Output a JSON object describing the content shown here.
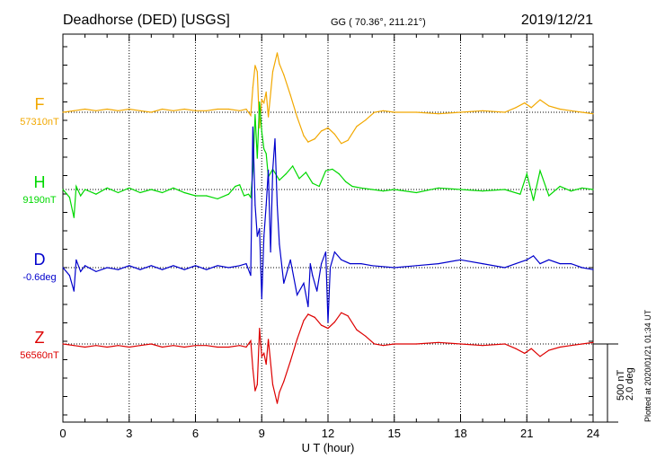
{
  "header": {
    "station": "Deadhorse (DED)  [USGS]",
    "coords": "GG ( 70.36°, 211.21°)",
    "date": "2019/12/21"
  },
  "footer_note": "Plotted at 2020/01/21 01:34 UT",
  "scale_bar": {
    "nT_label": "500 nT",
    "deg_label": "2.0 deg"
  },
  "colors": {
    "F": "#f2a800",
    "H": "#00d800",
    "D": "#0000cc",
    "Z": "#dd0000",
    "grid": "#000000"
  },
  "chart_data": {
    "type": "line",
    "xlabel": "U T (hour)",
    "xlim": [
      0,
      24
    ],
    "xticks": [
      0,
      3,
      6,
      9,
      12,
      15,
      18,
      21,
      24
    ],
    "xtick_labels": [
      "0",
      "3",
      "6",
      "9",
      "12",
      "15",
      "18",
      "21",
      "24"
    ],
    "grid": true,
    "series": [
      {
        "name": "F",
        "baseline_label": "57310nT",
        "color": "#f2a800",
        "x": [
          0,
          0.5,
          1,
          1.5,
          2,
          2.5,
          3,
          3.5,
          4,
          4.5,
          5,
          5.5,
          6,
          6.5,
          7,
          7.5,
          8,
          8.3,
          8.5,
          8.6,
          8.7,
          8.8,
          8.9,
          9.0,
          9.1,
          9.2,
          9.3,
          9.5,
          9.7,
          9.8,
          10,
          10.3,
          10.6,
          10.9,
          11.1,
          11.4,
          11.7,
          12.0,
          12.3,
          12.6,
          12.9,
          13.3,
          13.7,
          14.1,
          14.5,
          15,
          16,
          17,
          18,
          19,
          20,
          20.5,
          20.9,
          21.2,
          21.6,
          22,
          22.5,
          23,
          23.5,
          24
        ],
        "values": [
          0,
          10,
          20,
          10,
          20,
          10,
          20,
          10,
          0,
          20,
          10,
          20,
          10,
          10,
          20,
          20,
          10,
          20,
          -20,
          160,
          300,
          260,
          -100,
          80,
          60,
          130,
          -30,
          260,
          380,
          310,
          240,
          110,
          -30,
          -150,
          -190,
          -170,
          -120,
          -100,
          -140,
          -200,
          -180,
          -90,
          -50,
          0,
          10,
          0,
          0,
          -10,
          0,
          10,
          0,
          30,
          60,
          30,
          80,
          40,
          20,
          10,
          0,
          -10
        ]
      },
      {
        "name": "H",
        "baseline_label": "9190nT",
        "color": "#00d800",
        "x": [
          0,
          0.3,
          0.5,
          0.6,
          0.8,
          1,
          1.5,
          2,
          2.5,
          3,
          3.5,
          4,
          4.5,
          5,
          5.5,
          6,
          6.5,
          7,
          7.5,
          7.8,
          8.0,
          8.2,
          8.4,
          8.5,
          8.6,
          8.7,
          8.8,
          8.9,
          9.0,
          9.1,
          9.2,
          9.3,
          9.5,
          9.8,
          10.1,
          10.4,
          10.7,
          11.0,
          11.3,
          11.6,
          11.9,
          12.2,
          12.5,
          12.8,
          13.1,
          13.5,
          14,
          14.5,
          15,
          16,
          17,
          18,
          19,
          20,
          20.7,
          21,
          21.3,
          21.6,
          22,
          22.5,
          23,
          23.5,
          24
        ],
        "values": [
          0,
          -50,
          -180,
          20,
          -40,
          0,
          -30,
          10,
          -20,
          10,
          -20,
          0,
          -20,
          10,
          -20,
          -40,
          -40,
          -60,
          -30,
          20,
          30,
          -40,
          -30,
          -50,
          120,
          480,
          200,
          560,
          370,
          260,
          230,
          80,
          130,
          60,
          100,
          150,
          70,
          110,
          40,
          20,
          120,
          130,
          100,
          50,
          20,
          10,
          0,
          -10,
          0,
          -20,
          10,
          0,
          -10,
          0,
          -30,
          100,
          -70,
          120,
          -40,
          20,
          -10,
          10,
          0
        ]
      },
      {
        "name": "D",
        "baseline_label": "-0.6deg",
        "color": "#0000cc",
        "x": [
          0,
          0.3,
          0.5,
          0.6,
          0.8,
          1,
          1.5,
          2,
          2.5,
          3,
          3.5,
          4,
          4.5,
          5,
          5.5,
          6,
          6.5,
          7,
          7.5,
          8,
          8.3,
          8.5,
          8.6,
          8.7,
          8.8,
          8.9,
          9.0,
          9.1,
          9.2,
          9.3,
          9.4,
          9.5,
          9.6,
          9.7,
          9.8,
          10,
          10.3,
          10.6,
          10.9,
          11.1,
          11.2,
          11.3,
          11.5,
          11.7,
          11.9,
          12.0,
          12.1,
          12.3,
          12.6,
          13,
          13.5,
          14,
          15,
          16,
          17,
          18,
          19,
          20,
          20.5,
          21,
          21.3,
          21.6,
          22,
          22.5,
          23,
          23.5,
          24
        ],
        "values": [
          0,
          -0.2,
          -0.6,
          0.2,
          -0.1,
          0.05,
          -0.1,
          0,
          -0.05,
          0.05,
          -0.05,
          0.05,
          -0.05,
          0.05,
          -0.05,
          0.05,
          -0.05,
          0.05,
          0,
          0.05,
          0.1,
          -0.2,
          3.6,
          1.6,
          0.8,
          1.0,
          -0.8,
          0.8,
          1.6,
          2.5,
          0.4,
          2.5,
          3.3,
          1.6,
          0.6,
          -0.4,
          0.2,
          -0.7,
          -0.4,
          -1.0,
          0.1,
          -0.2,
          -0.6,
          0.1,
          0.4,
          -1.4,
          0.0,
          0.4,
          0.2,
          0.1,
          0.1,
          0.05,
          0,
          0.05,
          0.1,
          0.2,
          0.1,
          0,
          0.1,
          0.2,
          0.3,
          0.1,
          0.2,
          0.1,
          0.1,
          0,
          -0.05
        ]
      },
      {
        "name": "Z",
        "baseline_label": "56560nT",
        "color": "#dd0000",
        "x": [
          0,
          0.5,
          1,
          1.5,
          2,
          2.5,
          3,
          3.5,
          4,
          4.5,
          5,
          5.5,
          6,
          6.5,
          7,
          7.5,
          8,
          8.3,
          8.5,
          8.6,
          8.7,
          8.8,
          8.9,
          9.0,
          9.1,
          9.2,
          9.3,
          9.5,
          9.7,
          9.8,
          10,
          10.3,
          10.6,
          10.9,
          11.1,
          11.4,
          11.7,
          12.0,
          12.3,
          12.6,
          12.9,
          13.3,
          13.7,
          14.1,
          14.5,
          15,
          16,
          17,
          18,
          19,
          20,
          20.5,
          20.9,
          21.2,
          21.6,
          22,
          22.5,
          23,
          23.5,
          24
        ],
        "values": [
          0,
          -10,
          -20,
          -10,
          -20,
          -10,
          -20,
          -10,
          0,
          -20,
          -10,
          -20,
          -10,
          -10,
          -20,
          -20,
          -10,
          -20,
          20,
          -160,
          -300,
          -260,
          100,
          -80,
          -60,
          -130,
          30,
          -260,
          -380,
          -310,
          -240,
          -110,
          30,
          150,
          190,
          170,
          120,
          100,
          140,
          200,
          180,
          90,
          50,
          0,
          -10,
          0,
          0,
          10,
          0,
          -10,
          0,
          -30,
          -60,
          -30,
          -80,
          -40,
          -20,
          -10,
          0,
          10
        ]
      }
    ]
  }
}
